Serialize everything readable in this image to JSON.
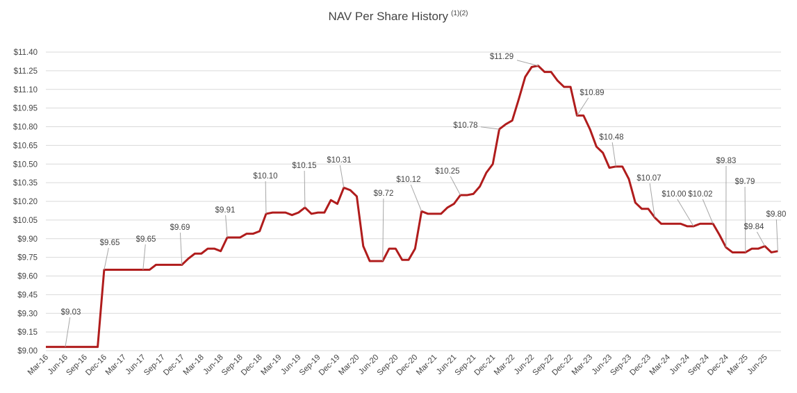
{
  "chart_data": {
    "type": "line",
    "title": "NAV Per Share History",
    "title_note": "(1)(2)",
    "categories": [
      "Mar-16",
      null,
      null,
      "Jun-16",
      null,
      null,
      "Sep-16",
      null,
      null,
      "Dec-16",
      null,
      null,
      "Mar-17",
      null,
      null,
      "Jun-17",
      null,
      null,
      "Sep-17",
      null,
      null,
      "Dec-17",
      null,
      null,
      "Mar-18",
      null,
      null,
      "Jun-18",
      null,
      null,
      "Sep-18",
      null,
      null,
      "Dec-18",
      null,
      null,
      "Mar-19",
      null,
      null,
      "Jun-19",
      null,
      null,
      "Sep-19",
      null,
      null,
      "Dec-19",
      null,
      null,
      "Mar-20",
      null,
      null,
      "Jun-20",
      null,
      null,
      "Sep-20",
      null,
      null,
      "Dec-20",
      null,
      null,
      "Mar-21",
      null,
      null,
      "Jun-21",
      null,
      null,
      "Sep-21",
      null,
      null,
      "Dec-21",
      null,
      null,
      "Mar-22",
      null,
      null,
      "Jun-22",
      null,
      null,
      "Sep-22",
      null,
      null,
      "Dec-22",
      null,
      null,
      "Mar-23",
      null,
      null,
      "Jun-23",
      null,
      null,
      "Sep-23",
      null,
      null,
      "Dec-23",
      null,
      null,
      "Mar-24",
      null,
      null,
      "Jun-24",
      null,
      null,
      "Sep-24",
      null,
      null,
      "Dec-24",
      null,
      null,
      "Mar-25",
      null,
      null,
      "Jun-25",
      null,
      null
    ],
    "values": [
      9.03,
      9.03,
      9.03,
      9.03,
      9.03,
      9.03,
      9.03,
      9.03,
      9.03,
      9.65,
      9.65,
      9.65,
      9.65,
      9.65,
      9.65,
      9.65,
      9.65,
      9.69,
      9.69,
      9.69,
      9.69,
      9.69,
      9.74,
      9.78,
      9.78,
      9.82,
      9.82,
      9.8,
      9.91,
      9.91,
      9.91,
      9.94,
      9.94,
      9.96,
      10.1,
      10.11,
      10.11,
      10.11,
      10.09,
      10.11,
      10.15,
      10.1,
      10.11,
      10.11,
      10.21,
      10.18,
      10.31,
      10.29,
      10.24,
      9.84,
      9.72,
      9.72,
      9.72,
      9.82,
      9.82,
      9.73,
      9.73,
      9.82,
      10.12,
      10.1,
      10.1,
      10.1,
      10.15,
      10.18,
      10.25,
      10.25,
      10.26,
      10.32,
      10.43,
      10.5,
      10.78,
      10.82,
      10.85,
      11.02,
      11.2,
      11.28,
      11.29,
      11.24,
      11.24,
      11.17,
      11.12,
      11.12,
      10.89,
      10.89,
      10.78,
      10.64,
      10.59,
      10.47,
      10.48,
      10.48,
      10.38,
      10.19,
      10.14,
      10.14,
      10.07,
      10.02,
      10.02,
      10.02,
      10.02,
      10.0,
      10.0,
      10.02,
      10.02,
      10.02,
      9.93,
      9.83,
      9.79,
      9.79,
      9.79,
      9.82,
      9.82,
      9.84,
      9.79,
      9.8
    ],
    "value_labels": [
      null,
      null,
      null,
      "$9.03",
      null,
      null,
      null,
      null,
      null,
      "$9.65",
      null,
      null,
      null,
      null,
      null,
      "$9.65",
      null,
      null,
      null,
      null,
      null,
      "$9.69",
      null,
      null,
      null,
      null,
      null,
      null,
      "$9.91",
      null,
      null,
      null,
      null,
      null,
      "$10.10",
      null,
      null,
      null,
      null,
      null,
      "$10.15",
      null,
      null,
      null,
      null,
      null,
      "$10.31",
      null,
      null,
      null,
      null,
      null,
      "$9.72",
      null,
      null,
      null,
      null,
      null,
      "$10.12",
      null,
      null,
      null,
      null,
      null,
      "$10.25",
      null,
      null,
      null,
      null,
      null,
      "$10.78",
      null,
      null,
      null,
      null,
      null,
      "$11.29",
      null,
      null,
      null,
      null,
      null,
      "$10.89",
      null,
      null,
      null,
      null,
      null,
      "$10.48",
      null,
      null,
      null,
      null,
      null,
      "$10.07",
      null,
      null,
      null,
      null,
      null,
      "$10.00",
      null,
      null,
      "$10.02",
      null,
      "$9.83",
      null,
      null,
      "$9.79",
      null,
      null,
      "$9.84",
      null,
      "$9.80"
    ],
    "color": "#b01c1c",
    "ylim": [
      9.0,
      11.4
    ],
    "yticks": [
      {
        "value": 9.0,
        "label": "$9.00"
      },
      {
        "value": 9.15,
        "label": "$9.15"
      },
      {
        "value": 9.3,
        "label": "$9.30"
      },
      {
        "value": 9.45,
        "label": "$9.45"
      },
      {
        "value": 9.6,
        "label": "$9.60"
      },
      {
        "value": 9.75,
        "label": "$9.75"
      },
      {
        "value": 9.9,
        "label": "$9.90"
      },
      {
        "value": 10.05,
        "label": "$10.05"
      },
      {
        "value": 10.2,
        "label": "$10.20"
      },
      {
        "value": 10.35,
        "label": "$10.35"
      },
      {
        "value": 10.5,
        "label": "$10.50"
      },
      {
        "value": 10.65,
        "label": "$10.65"
      },
      {
        "value": 10.8,
        "label": "$10.80"
      },
      {
        "value": 10.95,
        "label": "$10.95"
      },
      {
        "value": 11.1,
        "label": "$11.10"
      },
      {
        "value": 11.25,
        "label": "$11.25"
      },
      {
        "value": 11.4,
        "label": "$11.40"
      }
    ],
    "grid": true
  }
}
